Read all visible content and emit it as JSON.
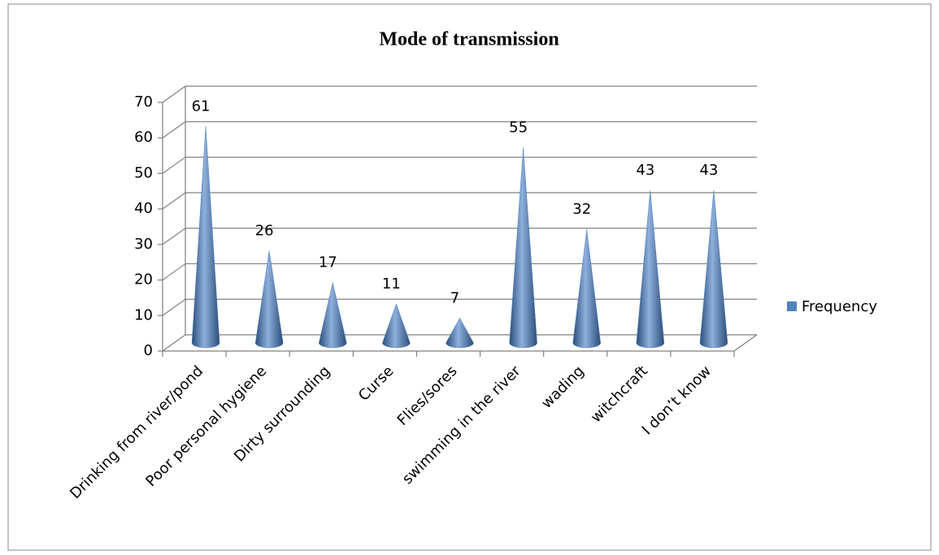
{
  "chart_data": {
    "type": "cone",
    "title": "Mode of transmission",
    "categories": [
      "Drinking from river/pond",
      "Poor personal hygiene",
      "Dirty surrounding",
      "Curse",
      "Flies/sores",
      "swimming in the river",
      "wading",
      "witchcraft",
      "I don’t know"
    ],
    "series": [
      {
        "name": "Frequency",
        "color": "#4f81bd",
        "values": [
          61,
          26,
          17,
          11,
          7,
          55,
          32,
          43,
          43
        ]
      }
    ],
    "ylim": [
      0,
      70
    ],
    "yticks": [
      0,
      10,
      20,
      30,
      40,
      50,
      60,
      70
    ],
    "grid": true,
    "legend": "right",
    "data_labels": true
  }
}
